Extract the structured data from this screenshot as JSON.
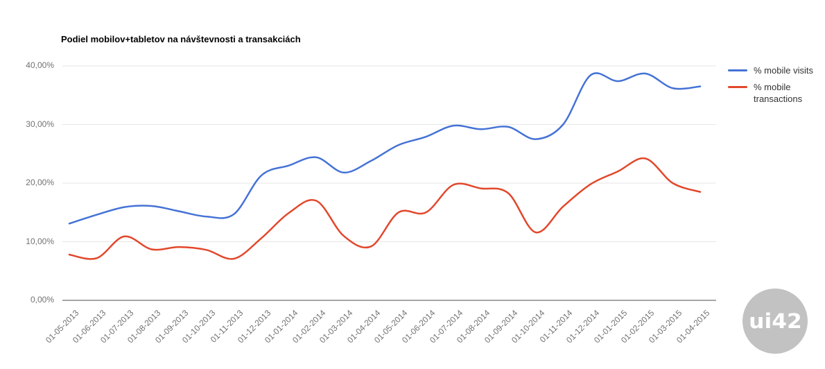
{
  "title": "Podiel mobilov+tabletov na návštevnosti a transakciách",
  "chart_data": {
    "type": "line",
    "curve": "smooth",
    "grid": true,
    "legend_position": "right",
    "categories": [
      "01-05-2013",
      "01-06-2013",
      "01-07-2013",
      "01-08-2013",
      "01-09-2013",
      "01-10-2013",
      "01-11-2013",
      "01-12-2013",
      "01-01-2014",
      "01-02-2014",
      "01-03-2014",
      "01-04-2014",
      "01-05-2014",
      "01-06-2014",
      "01-07-2014",
      "01-08-2014",
      "01-09-2014",
      "01-10-2014",
      "01-11-2014",
      "01-12-2014",
      "01-01-2015",
      "01-02-2015",
      "01-03-2015",
      "01-04-2015"
    ],
    "series": [
      {
        "name": "% mobile visits",
        "color": "#4472d6",
        "values": [
          13.1,
          14.6,
          15.9,
          16.1,
          15.2,
          14.3,
          14.7,
          21.3,
          23.0,
          24.4,
          21.8,
          23.8,
          26.5,
          27.9,
          29.8,
          29.2,
          29.6,
          27.5,
          30.0,
          38.4,
          37.4,
          38.7,
          36.2,
          36.5
        ]
      },
      {
        "name": "% mobile transactions",
        "color": "#e2472b",
        "values": [
          7.8,
          7.2,
          10.9,
          8.7,
          9.1,
          8.6,
          7.1,
          10.6,
          14.9,
          17.0,
          11.0,
          9.2,
          15.0,
          15.0,
          19.7,
          19.1,
          18.3,
          11.6,
          16.0,
          19.8,
          22.0,
          24.2,
          20.0,
          18.5
        ]
      }
    ],
    "xlabel": "",
    "ylabel": "",
    "ylim": [
      0,
      40
    ],
    "y_ticks": {
      "values": [
        0,
        10,
        20,
        30,
        40
      ],
      "labels": [
        "0,00%",
        "10,00%",
        "20,00%",
        "30,00%",
        "40,00%"
      ]
    },
    "gridline_color": "#e6e6e6",
    "axis_line_color": "#4d4d4d",
    "tick_label_color": "#717171"
  },
  "watermark": {
    "text": "ui42"
  }
}
